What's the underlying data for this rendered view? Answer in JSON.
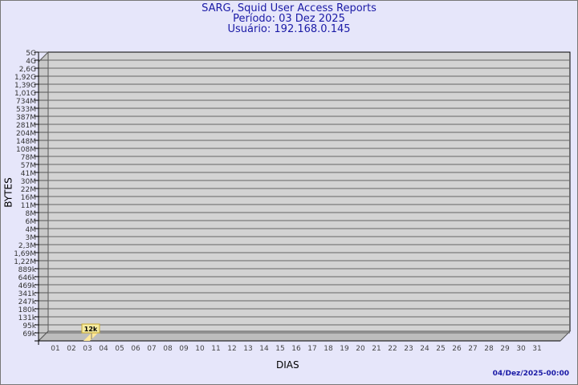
{
  "header": {
    "title": "SARG, Squid User Access Reports",
    "period": "Período: 03 Dez 2025",
    "user": "Usuário: 192.168.0.145"
  },
  "footer": {
    "timestamp": "04/Dez/2025-00:00"
  },
  "colors": {
    "title": "#1a1aa6",
    "plot_bg": "#d3d3d3",
    "bar": "#ffe89a",
    "label_bg": "#f5eba0",
    "background": "#e6e6fa"
  },
  "chart_data": {
    "type": "bar",
    "xlabel": "DIAS",
    "ylabel": "BYTES",
    "categories": [
      "01",
      "02",
      "03",
      "04",
      "05",
      "06",
      "07",
      "08",
      "09",
      "10",
      "11",
      "12",
      "13",
      "14",
      "15",
      "16",
      "17",
      "18",
      "19",
      "20",
      "21",
      "22",
      "23",
      "24",
      "25",
      "26",
      "27",
      "28",
      "29",
      "30",
      "31"
    ],
    "y_tick_labels": [
      "5G",
      "4G",
      "2,6G",
      "1,92G",
      "1,39G",
      "1,01G",
      "734M",
      "533M",
      "387M",
      "281M",
      "204M",
      "148M",
      "108M",
      "78M",
      "57M",
      "41M",
      "30M",
      "22M",
      "16M",
      "11M",
      "8M",
      "6M",
      "4M",
      "3M",
      "2,3M",
      "1,69M",
      "1,22M",
      "889k",
      "646k",
      "469k",
      "341k",
      "247k",
      "180k",
      "131k",
      "95k",
      "69k"
    ],
    "y_scale": "log",
    "grid": true,
    "series": [
      {
        "points": [
          {
            "x": "03",
            "value": 12000,
            "label": "12k"
          }
        ]
      }
    ]
  }
}
